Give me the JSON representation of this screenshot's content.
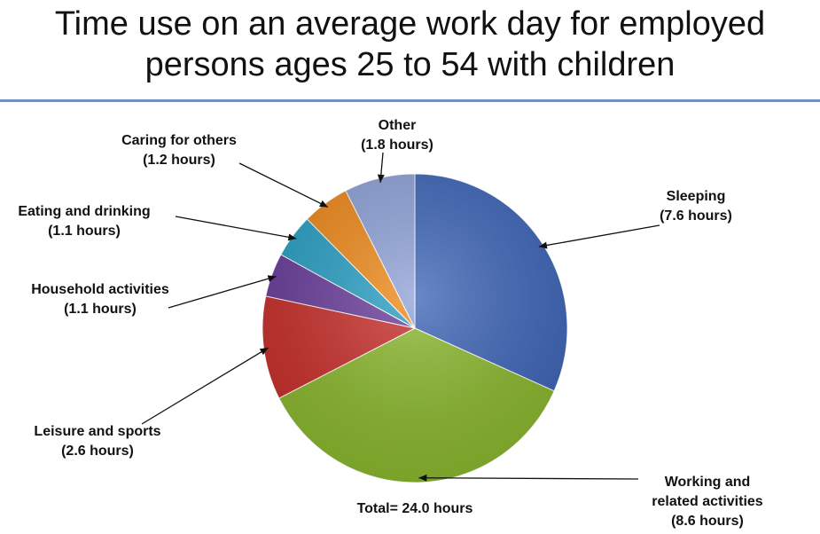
{
  "title": {
    "line1": "Time use on an average work day for employed",
    "line2": "persons ages 25 to 54 with children"
  },
  "chart_data": {
    "type": "pie",
    "title": "Time use on an average work day for employed persons ages 25 to 54 with children",
    "total_label": "Total= 24.0 hours",
    "slices": [
      {
        "category": "Sleeping",
        "line1": "Sleeping",
        "line2": "",
        "hours_label": "(7.6 hours)",
        "value": 7.6,
        "color": "#3f66b8"
      },
      {
        "category": "Working and related activities",
        "line1": "Working and",
        "line2": "related activities",
        "hours_label": "(8.6 hours)",
        "value": 8.6,
        "color": "#8bb82e"
      },
      {
        "category": "Leisure and sports",
        "line1": "Leisure and sports",
        "line2": "",
        "hours_label": "(2.6 hours)",
        "value": 2.6,
        "color": "#c8302b"
      },
      {
        "category": "Household activities",
        "line1": "Household activities",
        "line2": "",
        "hours_label": "(1.1 hours)",
        "value": 1.1,
        "color": "#6b3f9c"
      },
      {
        "category": "Eating and drinking",
        "line1": "Eating and drinking",
        "line2": "",
        "hours_label": "(1.1 hours)",
        "value": 1.1,
        "color": "#2aa0c4"
      },
      {
        "category": "Caring for others",
        "line1": "Caring for others",
        "line2": "",
        "hours_label": "(1.2 hours)",
        "value": 1.2,
        "color": "#ef8a1c"
      },
      {
        "category": "Other",
        "line1": "Other",
        "line2": "",
        "hours_label": "(1.8 hours)",
        "value": 1.8,
        "color": "#8fa3d8"
      }
    ]
  }
}
